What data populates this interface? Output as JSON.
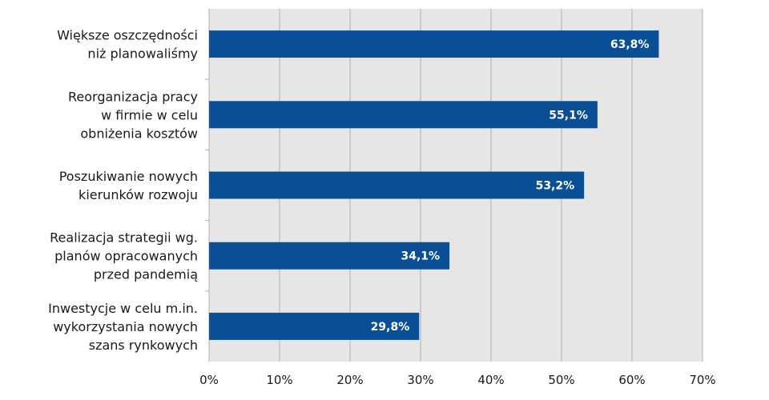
{
  "chart_data": {
    "type": "bar",
    "orientation": "horizontal",
    "categories": [
      [
        "Większe oszczędności",
        "niż planowaliśmy"
      ],
      [
        "Reorganizacja pracy",
        "w firmie w celu",
        "obniżenia kosztów"
      ],
      [
        "Poszukiwanie nowych",
        "kierunków rozwoju"
      ],
      [
        "Realizacja strategii wg.",
        "planów opracowanych",
        "przed pandemią"
      ],
      [
        "Inwestycje w celu m.in.",
        "wykorzystania nowych",
        "szans rynkowych"
      ]
    ],
    "values": [
      63.8,
      55.1,
      53.2,
      34.1,
      29.8
    ],
    "data_labels": [
      "63,8%",
      "55,1%",
      "53,2%",
      "34,1%",
      "29,8%"
    ],
    "xlim": [
      0,
      70
    ],
    "x_ticks": [
      0,
      10,
      20,
      30,
      40,
      50,
      60,
      70
    ],
    "x_tick_labels": [
      "0%",
      "10%",
      "20%",
      "30%",
      "40%",
      "50%",
      "60%",
      "70%"
    ],
    "grid": true,
    "colors": {
      "bar": "#0a4f96",
      "plot_background": "#e6e6e7",
      "gridline": "#b0b0b0",
      "text": "#1a1a1a",
      "data_label": "#ffffff"
    }
  }
}
